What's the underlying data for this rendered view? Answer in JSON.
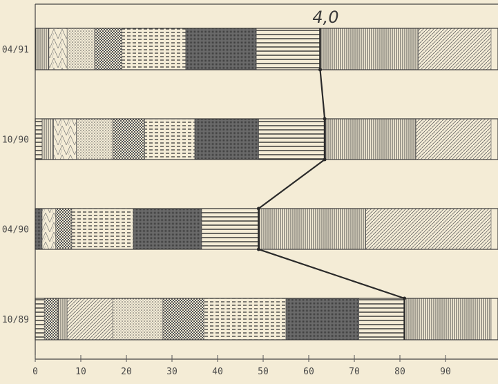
{
  "chart_data": {
    "type": "bar",
    "orientation": "horizontal",
    "stacked": true,
    "title": "",
    "xlabel": "",
    "ylabel": "",
    "xlim": [
      0,
      100
    ],
    "xticks": [
      "0",
      "10",
      "20",
      "30",
      "40",
      "50",
      "60",
      "70",
      "80",
      "90"
    ],
    "categories": [
      "04/91",
      "10/90",
      "04/90",
      "10/89"
    ],
    "segments": [
      [
        {
          "pattern": "vlines",
          "start": 0.0,
          "end": 3.0
        },
        {
          "pattern": "tri",
          "start": 3.0,
          "end": 7.0
        },
        {
          "pattern": "dots",
          "start": 7.0,
          "end": 13.0
        },
        {
          "pattern": "checker",
          "start": 13.0,
          "end": 19.0
        },
        {
          "pattern": "dashes",
          "start": 19.0,
          "end": 33.0
        },
        {
          "pattern": "dense",
          "start": 33.0,
          "end": 48.5
        },
        {
          "pattern": "hlines",
          "start": 48.5,
          "end": 62.5
        },
        {
          "pattern": "vlines",
          "start": 62.5,
          "end": 84.0
        },
        {
          "pattern": "diag",
          "start": 84.0,
          "end": 100.0
        }
      ],
      [
        {
          "pattern": "hlines",
          "start": 0.0,
          "end": 1.5
        },
        {
          "pattern": "vlines",
          "start": 1.5,
          "end": 4.0
        },
        {
          "pattern": "tri",
          "start": 4.0,
          "end": 9.0
        },
        {
          "pattern": "dots",
          "start": 9.0,
          "end": 17.0
        },
        {
          "pattern": "checker",
          "start": 17.0,
          "end": 24.0
        },
        {
          "pattern": "dashes",
          "start": 24.0,
          "end": 35.0
        },
        {
          "pattern": "dense",
          "start": 35.0,
          "end": 49.0
        },
        {
          "pattern": "hlines",
          "start": 49.0,
          "end": 63.5
        },
        {
          "pattern": "vlines",
          "start": 63.5,
          "end": 83.5
        },
        {
          "pattern": "diag",
          "start": 83.5,
          "end": 100.0
        }
      ],
      [
        {
          "pattern": "dense",
          "start": 0.0,
          "end": 1.5
        },
        {
          "pattern": "tri",
          "start": 1.5,
          "end": 4.5
        },
        {
          "pattern": "checker",
          "start": 4.5,
          "end": 8.0
        },
        {
          "pattern": "dashes",
          "start": 8.0,
          "end": 21.5
        },
        {
          "pattern": "dense",
          "start": 21.5,
          "end": 36.5
        },
        {
          "pattern": "hlines",
          "start": 36.5,
          "end": 49.0
        },
        {
          "pattern": "vlines",
          "start": 49.0,
          "end": 72.5
        },
        {
          "pattern": "diag",
          "start": 72.5,
          "end": 100.0
        }
      ],
      [
        {
          "pattern": "hlines",
          "start": 0.0,
          "end": 2.0
        },
        {
          "pattern": "checker",
          "start": 2.0,
          "end": 5.0
        },
        {
          "pattern": "vlines",
          "start": 5.0,
          "end": 7.0
        },
        {
          "pattern": "diag",
          "start": 7.0,
          "end": 17.0
        },
        {
          "pattern": "dots",
          "start": 17.0,
          "end": 28.0
        },
        {
          "pattern": "checker",
          "start": 28.0,
          "end": 37.0
        },
        {
          "pattern": "dashes",
          "start": 37.0,
          "end": 55.0
        },
        {
          "pattern": "dense",
          "start": 55.0,
          "end": 71.0
        },
        {
          "pattern": "hlines",
          "start": 71.0,
          "end": 81.0
        },
        {
          "pattern": "vlines",
          "start": 81.0,
          "end": 100.0
        }
      ]
    ],
    "connector_values": [
      62.5,
      63.5,
      49.0,
      81.0
    ],
    "annotation": "4,0",
    "colors": {
      "background": "#f4ecd6",
      "ink": "#3a3a3a",
      "marker": "#2a2a2a"
    }
  }
}
